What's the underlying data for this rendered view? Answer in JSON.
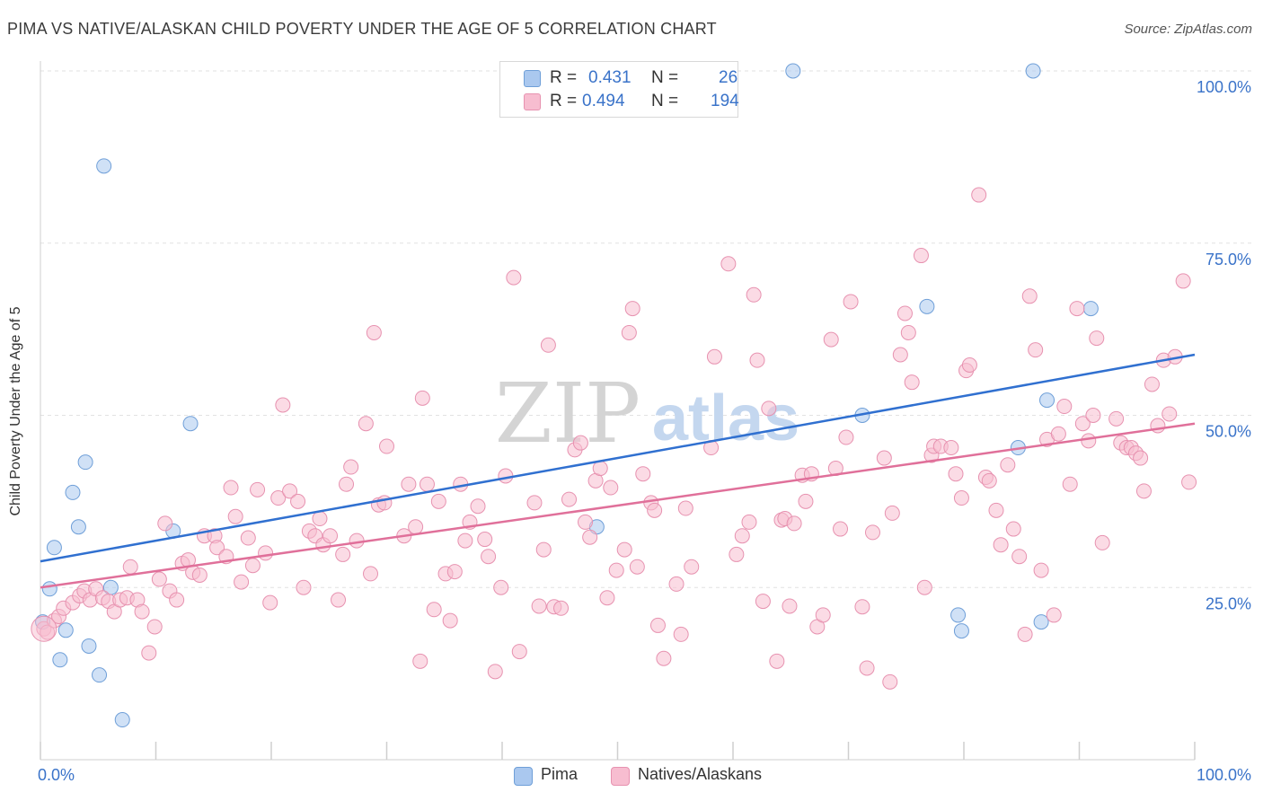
{
  "title": "PIMA VS NATIVE/ALASKAN CHILD POVERTY UNDER THE AGE OF 5 CORRELATION CHART",
  "source": "Source: ZipAtlas.com",
  "watermark": {
    "zip": "ZIP",
    "atlas": "atlas"
  },
  "legend_top": {
    "rows": [
      {
        "r_label": "R =",
        "r_value": "0.431",
        "n_label": "N =",
        "n_value": "26",
        "color": "#aac8ef",
        "stroke": "#6f9fd8"
      },
      {
        "r_label": "R =",
        "r_value": "0.494",
        "n_label": "N =",
        "n_value": "194",
        "color": "#f7bdd0",
        "stroke": "#e792b0"
      }
    ]
  },
  "legend_bottom": [
    {
      "label": "Pima",
      "color": "#aac8ef",
      "stroke": "#6f9fd8"
    },
    {
      "label": "Natives/Alaskans",
      "color": "#f7bdd0",
      "stroke": "#e792b0"
    }
  ],
  "chart_data": {
    "type": "scatter",
    "title": "PIMA VS NATIVE/ALASKAN CHILD POVERTY UNDER THE AGE OF 5 CORRELATION CHART",
    "xlabel": "",
    "ylabel": "Child Poverty Under the Age of 5",
    "xlim": [
      0,
      100
    ],
    "ylim": [
      0,
      100
    ],
    "x_tick_labels": [
      {
        "value": 0,
        "label": "0.0%"
      },
      {
        "value": 100,
        "label": "100.0%"
      }
    ],
    "y_tick_labels": [
      {
        "value": 25,
        "label": "25.0%"
      },
      {
        "value": 50,
        "label": "50.0%"
      },
      {
        "value": 75,
        "label": "75.0%"
      },
      {
        "value": 100,
        "label": "100.0%"
      }
    ],
    "grid": true,
    "legend": "top-center",
    "series": [
      {
        "name": "Pima",
        "color": "#aac8ef",
        "stroke": "#6f9fd8",
        "trend_color": "#3070d0",
        "trend": {
          "x": [
            0,
            100
          ],
          "y": [
            28.8,
            58.8
          ]
        },
        "points": [
          [
            0.2,
            20
          ],
          [
            0.8,
            24.8
          ],
          [
            1.2,
            30.8
          ],
          [
            1.7,
            14.5
          ],
          [
            2.2,
            18.8
          ],
          [
            2.8,
            38.8
          ],
          [
            3.3,
            33.8
          ],
          [
            3.9,
            43.2
          ],
          [
            4.2,
            16.5
          ],
          [
            5.1,
            12.3
          ],
          [
            5.5,
            86.2
          ],
          [
            6.1,
            25
          ],
          [
            7.1,
            5.8
          ],
          [
            11.5,
            33.2
          ],
          [
            13,
            48.8
          ],
          [
            48.2,
            33.8
          ],
          [
            65.2,
            100
          ],
          [
            71.2,
            50
          ],
          [
            76.8,
            65.8
          ],
          [
            79.5,
            21
          ],
          [
            79.8,
            18.7
          ],
          [
            84.7,
            45.3
          ],
          [
            86,
            100
          ],
          [
            86.7,
            20
          ],
          [
            87.2,
            52.2
          ],
          [
            91,
            65.5
          ]
        ]
      },
      {
        "name": "Natives/Alaskans",
        "color": "#f7bdd0",
        "stroke": "#e792b0",
        "trend_color": "#e0709a",
        "trend": {
          "x": [
            0,
            100
          ],
          "y": [
            25.0,
            48.8
          ]
        },
        "points": [
          [
            0.3,
            19
          ],
          [
            0.6,
            18.5
          ],
          [
            1.2,
            20.2
          ],
          [
            1.6,
            20.8
          ],
          [
            2,
            22
          ],
          [
            2.8,
            22.8
          ],
          [
            3.4,
            23.8
          ],
          [
            3.8,
            24.5
          ],
          [
            4.3,
            23.2
          ],
          [
            4.8,
            24.8
          ],
          [
            5.4,
            23.5
          ],
          [
            5.9,
            23
          ],
          [
            6.4,
            21.5
          ],
          [
            6.9,
            23.2
          ],
          [
            7.5,
            23.5
          ],
          [
            7.8,
            28
          ],
          [
            8.4,
            23.2
          ],
          [
            8.8,
            21.5
          ],
          [
            9.4,
            15.5
          ],
          [
            9.9,
            19.3
          ],
          [
            10.3,
            26.2
          ],
          [
            10.8,
            34.3
          ],
          [
            11.2,
            24.5
          ],
          [
            11.8,
            23.2
          ],
          [
            12.3,
            28.5
          ],
          [
            12.8,
            29
          ],
          [
            13.2,
            27.2
          ],
          [
            13.8,
            26.8
          ],
          [
            14.2,
            32.5
          ],
          [
            15.1,
            32.5
          ],
          [
            15.3,
            30.8
          ],
          [
            16.1,
            29.5
          ],
          [
            16.5,
            39.5
          ],
          [
            16.9,
            35.3
          ],
          [
            17.4,
            25.8
          ],
          [
            18,
            32.2
          ],
          [
            18.4,
            28.2
          ],
          [
            18.8,
            39.2
          ],
          [
            19.5,
            30
          ],
          [
            19.9,
            22.8
          ],
          [
            20.6,
            38
          ],
          [
            21,
            51.5
          ],
          [
            21.6,
            39
          ],
          [
            22.3,
            37.5
          ],
          [
            22.8,
            25
          ],
          [
            23.3,
            33.2
          ],
          [
            23.8,
            32.5
          ],
          [
            24.2,
            35
          ],
          [
            24.5,
            31.2
          ],
          [
            25.1,
            32.5
          ],
          [
            25.8,
            23.2
          ],
          [
            26.2,
            29.8
          ],
          [
            26.5,
            40
          ],
          [
            26.9,
            42.5
          ],
          [
            27.4,
            31.8
          ],
          [
            28.2,
            48.8
          ],
          [
            28.6,
            27
          ],
          [
            28.9,
            62
          ],
          [
            29.3,
            37
          ],
          [
            29.8,
            37.3
          ],
          [
            30,
            45.5
          ],
          [
            31.5,
            32.5
          ],
          [
            31.9,
            40
          ],
          [
            32.5,
            33.8
          ],
          [
            32.9,
            14.3
          ],
          [
            33.1,
            52.5
          ],
          [
            33.5,
            40
          ],
          [
            34.1,
            21.8
          ],
          [
            34.5,
            37.5
          ],
          [
            35.1,
            27
          ],
          [
            35.5,
            20.2
          ],
          [
            35.9,
            27.3
          ],
          [
            36.4,
            40
          ],
          [
            36.8,
            31.8
          ],
          [
            37.2,
            34.5
          ],
          [
            37.9,
            36.8
          ],
          [
            38.5,
            32
          ],
          [
            38.8,
            29.5
          ],
          [
            39.4,
            12.8
          ],
          [
            39.9,
            25
          ],
          [
            40.3,
            41.2
          ],
          [
            41,
            70
          ],
          [
            41.5,
            15.7
          ],
          [
            42.8,
            37.3
          ],
          [
            43.2,
            22.3
          ],
          [
            43.6,
            30.5
          ],
          [
            44,
            60.2
          ],
          [
            44.5,
            22.2
          ],
          [
            45.1,
            22
          ],
          [
            45.8,
            37.8
          ],
          [
            46.3,
            45
          ],
          [
            46.8,
            46
          ],
          [
            47.2,
            34.5
          ],
          [
            47.6,
            32.3
          ],
          [
            48.1,
            40.5
          ],
          [
            48.5,
            42.3
          ],
          [
            49.1,
            23.5
          ],
          [
            49.4,
            39.5
          ],
          [
            49.9,
            27.5
          ],
          [
            50.6,
            30.5
          ],
          [
            51,
            62
          ],
          [
            51.3,
            65.5
          ],
          [
            51.7,
            28
          ],
          [
            52.2,
            41.5
          ],
          [
            52.9,
            37.3
          ],
          [
            53.2,
            36.2
          ],
          [
            53.5,
            19.5
          ],
          [
            54,
            14.7
          ],
          [
            55.1,
            25.5
          ],
          [
            55.5,
            18.2
          ],
          [
            55.9,
            36.5
          ],
          [
            56.4,
            28
          ],
          [
            58.1,
            45.3
          ],
          [
            58.4,
            58.5
          ],
          [
            59.6,
            72
          ],
          [
            60.3,
            29.8
          ],
          [
            60.8,
            32.5
          ],
          [
            61.4,
            34.5
          ],
          [
            61.8,
            67.5
          ],
          [
            62.1,
            58
          ],
          [
            62.6,
            23
          ],
          [
            63.1,
            51
          ],
          [
            63.8,
            14.3
          ],
          [
            64.2,
            34.8
          ],
          [
            64.5,
            35
          ],
          [
            64.9,
            22.3
          ],
          [
            65.3,
            34.3
          ],
          [
            66,
            41.3
          ],
          [
            66.3,
            37.5
          ],
          [
            66.8,
            41.5
          ],
          [
            67.3,
            19.3
          ],
          [
            67.8,
            21
          ],
          [
            68.5,
            61
          ],
          [
            68.9,
            42.3
          ],
          [
            69.3,
            33.5
          ],
          [
            69.8,
            46.8
          ],
          [
            70.2,
            66.5
          ],
          [
            71.2,
            22.2
          ],
          [
            71.6,
            13.3
          ],
          [
            72.1,
            33
          ],
          [
            73.1,
            43.8
          ],
          [
            73.6,
            11.3
          ],
          [
            73.8,
            35.8
          ],
          [
            74.5,
            58.8
          ],
          [
            74.9,
            64.8
          ],
          [
            75.2,
            62
          ],
          [
            75.5,
            54.8
          ],
          [
            76.3,
            73.2
          ],
          [
            76.6,
            25
          ],
          [
            77.2,
            44.2
          ],
          [
            77.4,
            45.5
          ],
          [
            78,
            45.5
          ],
          [
            78.9,
            45.3
          ],
          [
            79.3,
            41.5
          ],
          [
            79.8,
            38
          ],
          [
            80.2,
            56.5
          ],
          [
            80.5,
            57.3
          ],
          [
            81.3,
            82
          ],
          [
            81.9,
            41
          ],
          [
            82.2,
            40.5
          ],
          [
            82.8,
            36.2
          ],
          [
            83.2,
            31.2
          ],
          [
            83.8,
            42.8
          ],
          [
            84.3,
            33.5
          ],
          [
            84.8,
            29.5
          ],
          [
            85.3,
            18.2
          ],
          [
            85.7,
            67.3
          ],
          [
            86.2,
            59.5
          ],
          [
            86.7,
            27.5
          ],
          [
            87.2,
            46.5
          ],
          [
            87.8,
            21
          ],
          [
            88.2,
            47.3
          ],
          [
            88.7,
            51.3
          ],
          [
            89.2,
            40
          ],
          [
            89.8,
            65.5
          ],
          [
            90.3,
            48.8
          ],
          [
            90.8,
            46.3
          ],
          [
            91.2,
            50
          ],
          [
            91.5,
            61.2
          ],
          [
            92,
            31.5
          ],
          [
            93.2,
            49.5
          ],
          [
            93.6,
            46
          ],
          [
            94.1,
            45.3
          ],
          [
            94.5,
            45.3
          ],
          [
            94.9,
            44.5
          ],
          [
            95.3,
            43.8
          ],
          [
            95.6,
            39
          ],
          [
            96.3,
            54.5
          ],
          [
            96.8,
            48.5
          ],
          [
            97.3,
            58
          ],
          [
            97.8,
            50.2
          ],
          [
            98.3,
            58.5
          ],
          [
            99,
            69.5
          ],
          [
            99.5,
            40.3
          ]
        ]
      }
    ]
  }
}
